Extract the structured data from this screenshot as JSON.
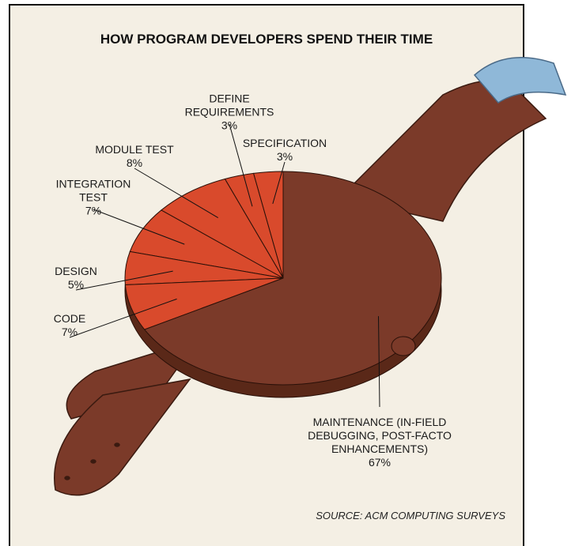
{
  "chart_data": {
    "type": "pie",
    "title": "HOW PROGRAM DEVELOPERS SPEND THEIR TIME",
    "categories": [
      "SPECIFICATION",
      "DEFINE REQUIREMENTS",
      "MODULE TEST",
      "INTEGRATION TEST",
      "DESIGN",
      "CODE",
      "MAINTENANCE (IN-FIELD DEBUGGING, POST-FACTO ENHANCEMENTS)"
    ],
    "values": [
      3,
      3,
      8,
      7,
      5,
      7,
      67
    ],
    "value_labels": [
      "3%",
      "3%",
      "8%",
      "7%",
      "5%",
      "7%",
      "67%"
    ],
    "colors": [
      "#d94a2c",
      "#d94a2c",
      "#d94a2c",
      "#d94a2c",
      "#d94a2c",
      "#d94a2c",
      "#7b3a29"
    ],
    "source": "SOURCE: ACM COMPUTING SURVEYS"
  }
}
